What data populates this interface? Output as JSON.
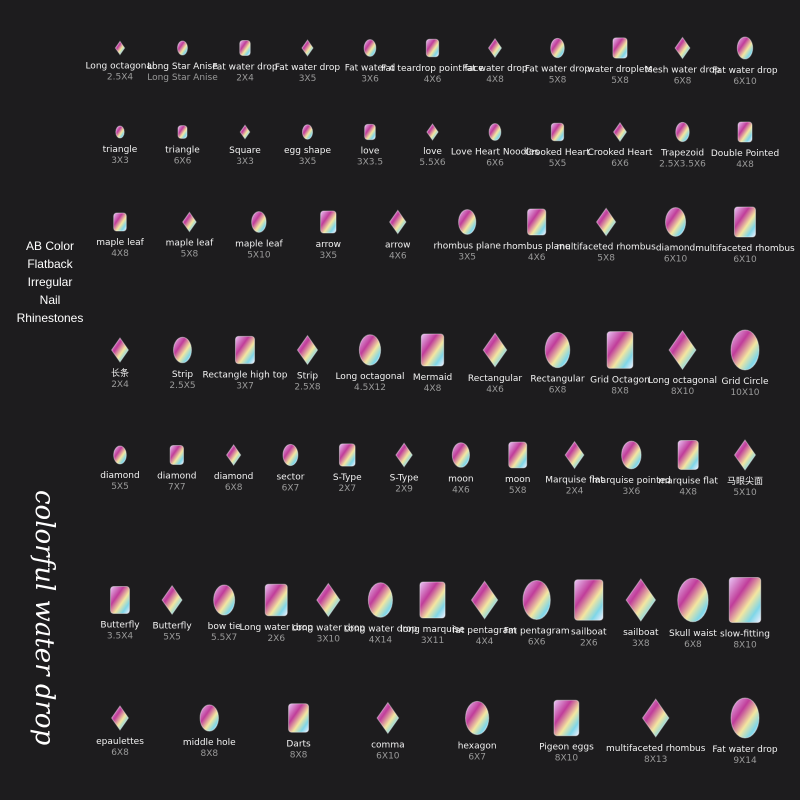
{
  "side_title": [
    "AB Color",
    "Flatback",
    "Irregular",
    "Nail",
    "Rhinestones"
  ],
  "script_caption": "colorful water drop",
  "rows": [
    [
      {
        "name": "Long octagonal",
        "size": "2.5X4"
      },
      {
        "name": "Long Star Anise",
        "size": "Long Star Anise"
      },
      {
        "name": "Fat water drop",
        "size": "2X4"
      },
      {
        "name": "Fat water drop",
        "size": "3X5"
      },
      {
        "name": "Fat water d",
        "size": "3X6"
      },
      {
        "name": "Fat teardrop point face",
        "size": "4X6"
      },
      {
        "name": "Fat water drop",
        "size": "4X8"
      },
      {
        "name": "Fat water drop",
        "size": "5X8"
      },
      {
        "name": "water droplets",
        "size": "5X8"
      },
      {
        "name": "Mesh water drop",
        "size": "6X8"
      },
      {
        "name": "Fat water drop",
        "size": "6X10"
      }
    ],
    [
      {
        "name": "triangle",
        "size": "3X3"
      },
      {
        "name": "triangle",
        "size": "6X6"
      },
      {
        "name": "Square",
        "size": "3X3"
      },
      {
        "name": "egg shape",
        "size": "3X5"
      },
      {
        "name": "love",
        "size": "3X3.5"
      },
      {
        "name": "love",
        "size": "5.5X6"
      },
      {
        "name": "Love Heart Noodles",
        "size": "6X6"
      },
      {
        "name": "Crooked Heart",
        "size": "5X5"
      },
      {
        "name": "Crooked Heart",
        "size": "6X6"
      },
      {
        "name": "Trapezoid",
        "size": "2.5X3.5X6"
      },
      {
        "name": "Double Pointed",
        "size": "4X8"
      }
    ],
    [
      {
        "name": "maple leaf",
        "size": "4X8"
      },
      {
        "name": "maple leaf",
        "size": "5X8"
      },
      {
        "name": "maple leaf",
        "size": "5X10"
      },
      {
        "name": "arrow",
        "size": "3X5"
      },
      {
        "name": "arrow",
        "size": "4X6"
      },
      {
        "name": "rhombus plane",
        "size": "3X5"
      },
      {
        "name": "rhombus plane",
        "size": "4X6"
      },
      {
        "name": "multifaceted rhombus",
        "size": "5X8"
      },
      {
        "name": "diamond",
        "size": "6X10"
      },
      {
        "name": "multifaceted rhombus",
        "size": "6X10"
      }
    ],
    [
      {
        "name": "长条",
        "size": "2X4"
      },
      {
        "name": "Strip",
        "size": "2.5X5"
      },
      {
        "name": "Rectangle high top",
        "size": "3X7"
      },
      {
        "name": "Strip",
        "size": "2.5X8"
      },
      {
        "name": "Long octagonal",
        "size": "4.5X12"
      },
      {
        "name": "Mermaid",
        "size": "4X8"
      },
      {
        "name": "Rectangular",
        "size": "4X6"
      },
      {
        "name": "Rectangular",
        "size": "6X8"
      },
      {
        "name": "Grid Octagon",
        "size": "8X8"
      },
      {
        "name": "Long octagonal",
        "size": "8X10"
      },
      {
        "name": "Grid Circle",
        "size": "10X10"
      }
    ],
    [
      {
        "name": "diamond",
        "size": "5X5"
      },
      {
        "name": "diamond",
        "size": "7X7"
      },
      {
        "name": "diamond",
        "size": "6X8"
      },
      {
        "name": "sector",
        "size": "6X7"
      },
      {
        "name": "S-Type",
        "size": "2X7"
      },
      {
        "name": "S-Type",
        "size": "2X9"
      },
      {
        "name": "moon",
        "size": "4X6"
      },
      {
        "name": "moon",
        "size": "5X8"
      },
      {
        "name": "Marquise flat",
        "size": "2X4"
      },
      {
        "name": "marquise pointed",
        "size": "3X6"
      },
      {
        "name": "marquise flat",
        "size": "4X8"
      },
      {
        "name": "马眼尖面",
        "size": "5X10"
      }
    ],
    [
      {
        "name": "Butterfly",
        "size": "3.5X4"
      },
      {
        "name": "Butterfly",
        "size": "5X5"
      },
      {
        "name": "bow tie",
        "size": "5.5X7"
      },
      {
        "name": "Long water drop",
        "size": "2X6"
      },
      {
        "name": "Long water drop",
        "size": "3X10"
      },
      {
        "name": "Long water drop",
        "size": "4X14"
      },
      {
        "name": "long marquise",
        "size": "3X11"
      },
      {
        "name": "fat pentagram",
        "size": "4X4"
      },
      {
        "name": "Fat pentagram",
        "size": "6X6"
      },
      {
        "name": "sailboat",
        "size": "2X6"
      },
      {
        "name": "sailboat",
        "size": "3X8"
      },
      {
        "name": "Skull waist",
        "size": "6X8"
      },
      {
        "name": "slow-fitting",
        "size": "8X10"
      }
    ],
    [
      {
        "name": "epaulettes",
        "size": "6X8"
      },
      {
        "name": "middle hole",
        "size": "8X8"
      },
      {
        "name": "Darts",
        "size": "8X8"
      },
      {
        "name": "comma",
        "size": "6X10"
      },
      {
        "name": "hexagon",
        "size": "6X7"
      },
      {
        "name": "Pigeon eggs",
        "size": "8X10"
      },
      {
        "name": "multifaceted rhombus",
        "size": "8X13"
      },
      {
        "name": "Fat water drop",
        "size": "9X14"
      }
    ]
  ]
}
